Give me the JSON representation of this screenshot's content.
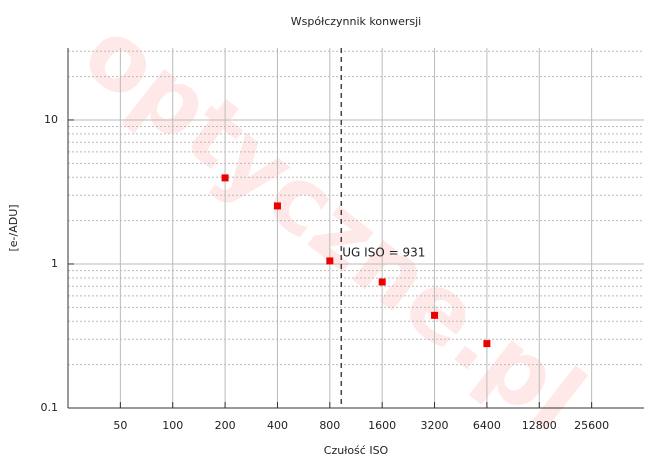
{
  "chart_data": {
    "type": "scatter",
    "title": "Współczynnik konwersji",
    "x_label": "Czułość ISO",
    "y_label": "[e-/ADU]",
    "watermark": "optyczne.pl",
    "x": [
      200,
      400,
      800,
      1600,
      3200,
      6400
    ],
    "series": [
      {
        "name": "Współczynnik konwersji",
        "color": "#ee0000",
        "values": [
          3.96,
          2.53,
          1.05,
          0.75,
          0.44,
          0.28
        ]
      }
    ],
    "xscale": "log2",
    "yscale": "log",
    "xlim": [
      25,
      51200
    ],
    "ylim": [
      0.1,
      31.6
    ],
    "xticks": [
      50,
      100,
      200,
      400,
      800,
      1600,
      3200,
      6400,
      12800,
      25600
    ],
    "yticks": [
      0.1,
      1,
      10
    ],
    "grid": true,
    "annotations": [
      {
        "x": 931,
        "text": "UG ISO = 931"
      }
    ]
  }
}
